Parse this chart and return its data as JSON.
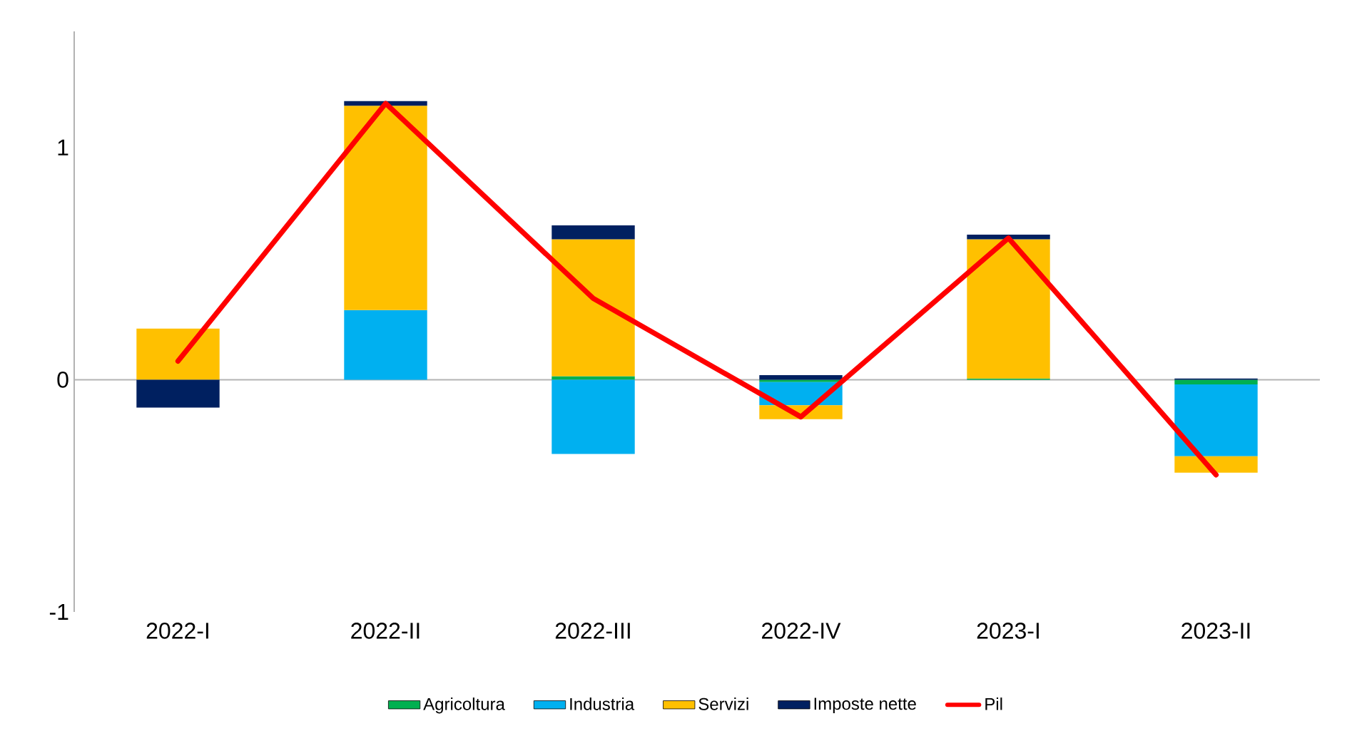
{
  "chart_data": {
    "type": "bar",
    "stacked": true,
    "categories": [
      "2022-I",
      "2022-II",
      "2022-III",
      "2022-IV",
      "2023-I",
      "2023-II"
    ],
    "series": [
      {
        "name": "Agricoltura",
        "color": "#00b050",
        "values": [
          0.0,
          0.0,
          0.015,
          -0.01,
          0.005,
          -0.02
        ]
      },
      {
        "name": "Industria",
        "color": "#00b0f0",
        "values": [
          0.0,
          0.3,
          -0.32,
          -0.1,
          0.0,
          -0.31
        ]
      },
      {
        "name": "Servizi",
        "color": "#ffc000",
        "values": [
          0.22,
          0.88,
          0.59,
          -0.06,
          0.6,
          -0.07
        ]
      },
      {
        "name": "Imposte nette",
        "color": "#002060",
        "values": [
          -0.12,
          0.02,
          0.06,
          0.02,
          0.02,
          0.005
        ]
      },
      {
        "name": "Pil",
        "color": "#ff0000",
        "type": "line",
        "values": [
          0.08,
          1.19,
          0.35,
          -0.16,
          0.61,
          -0.41
        ]
      }
    ],
    "ylim": [
      -1,
      1.5
    ],
    "yticks": [
      -1,
      0,
      1
    ],
    "legend": "bottom",
    "grid": false,
    "ref_lines": [
      {
        "axis": "y",
        "value": 0,
        "color": "#b3b3b3"
      }
    ]
  }
}
